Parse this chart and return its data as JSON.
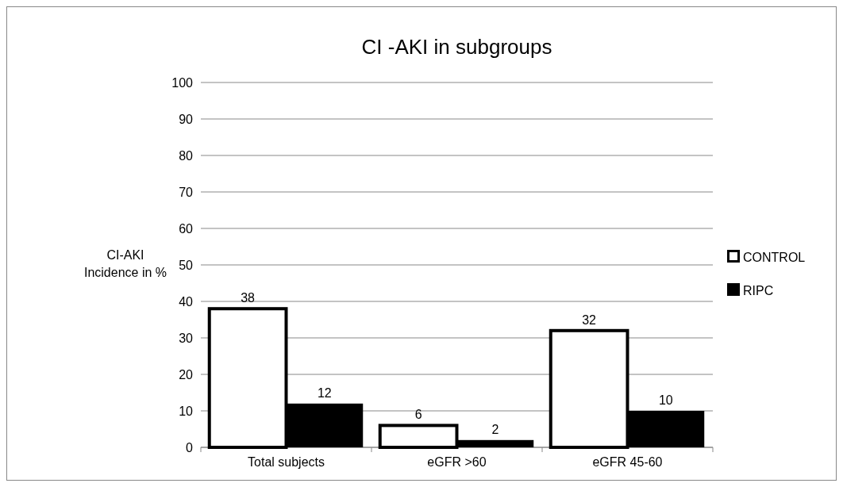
{
  "chart_data": {
    "type": "bar",
    "title": "CI -AKI in subgroups",
    "ylabel": "CI-AKI\nIncidence in %",
    "categories": [
      "Total subjects",
      "eGFR >60",
      "eGFR 45-60"
    ],
    "series": [
      {
        "name": "CONTROL",
        "color": "#ffffff",
        "values": [
          38,
          6,
          32
        ]
      },
      {
        "name": "RIPC",
        "color": "#000000",
        "values": [
          12,
          2,
          10
        ]
      }
    ],
    "ylim": [
      0,
      100
    ],
    "yticks": [
      0,
      10,
      20,
      30,
      40,
      50,
      60,
      70,
      80,
      90,
      100
    ],
    "grid": "y",
    "legend": "right",
    "data_labels": true
  }
}
